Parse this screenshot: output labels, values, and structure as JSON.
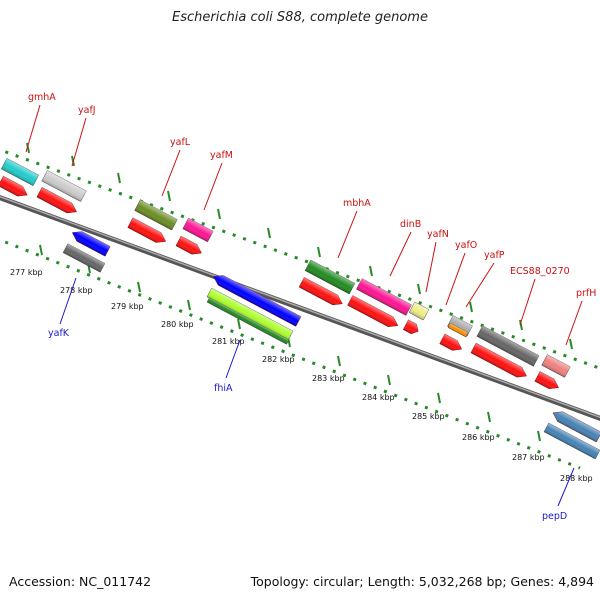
{
  "title": "Escherichia coli S88, complete genome",
  "footer": {
    "accession": "Accession: NC_011742",
    "summary": "Topology: circular; Length: 5,032,268 bp; Genes: 4,894"
  },
  "colors": {
    "forward_label": "#cc1111",
    "reverse_label": "#1a1acc",
    "dots": "#2a8a2a",
    "backbone": "#808080"
  },
  "kbp_labels": [
    "277 kbp",
    "278 kbp",
    "279 kbp",
    "280 kbp",
    "281 kbp",
    "282 kbp",
    "283 kbp",
    "284 kbp",
    "285 kbp",
    "286 kbp",
    "287 kbp",
    "288 kbp"
  ],
  "forward_genes": [
    {
      "name": "gmhA",
      "color": "#22cccc"
    },
    {
      "name": "yafJ",
      "color": "#cccccc"
    },
    {
      "name": "yafL",
      "color": "#6b8e23"
    },
    {
      "name": "yafM",
      "color": "#ff1493"
    },
    {
      "name": "mbhA",
      "color": "#228b22"
    },
    {
      "name": "dinB",
      "color": "#ff1493"
    },
    {
      "name": "yafN",
      "color": "#eeee88"
    },
    {
      "name": "yafO",
      "color": "#aaaaaa"
    },
    {
      "name": "yafP",
      "color": "#666666"
    },
    {
      "name": "ECS88_0270",
      "color": "#f08080"
    },
    {
      "name": "prfH",
      "color": "#ff2222"
    }
  ],
  "reverse_genes": [
    {
      "name": "yafK",
      "color": "#0000ff"
    },
    {
      "name": "fhiA",
      "color": "#0000ff"
    },
    {
      "name": "pepD",
      "color": "#4682b4"
    }
  ]
}
